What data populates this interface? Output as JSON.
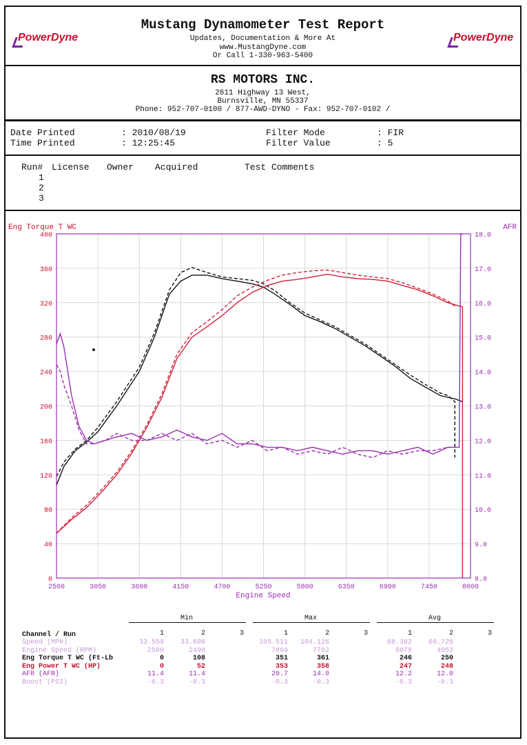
{
  "header": {
    "title": "Mustang Dynamometer Test Report",
    "line1": "Updates, Documentation & More At",
    "line2": "www.MustangDyne.com",
    "line3": "Or Call 1-330-963-5400",
    "logo_left": "PowerDyne",
    "logo_right": "PowerDyne"
  },
  "company": {
    "name": "RS MOTORS INC.",
    "address1": "2611 Highway 13 West,",
    "address2": "Burnsville, MN  55337",
    "phone": "Phone: 952-707-0100 / 877-AWD-DYNO - Fax: 952-707-0102 /"
  },
  "info": {
    "date_label": "Date Printed",
    "date_value": ": 2010/08/19",
    "time_label": "Time Printed",
    "time_value": ": 12:25:45",
    "filter_mode_label": "Filter Mode",
    "filter_mode_value": ":  FIR",
    "filter_value_label": "Filter Value",
    "filter_value_value": ":  5"
  },
  "runs": {
    "headers": [
      "Run#",
      "License",
      "Owner",
      "Acquired",
      "Test Comments"
    ],
    "numbers": [
      "1",
      "2",
      "3"
    ]
  },
  "chart_data": {
    "type": "line",
    "y_left_label": "Eng Torque T WC",
    "y_right_label": "AFR",
    "xlabel": "Engine Speed",
    "xlim": [
      2500,
      8000
    ],
    "ylim": [
      0,
      400
    ],
    "y2lim": [
      8.0,
      18.0
    ],
    "x_ticks": [
      2500,
      3050,
      3600,
      4150,
      4700,
      5250,
      5800,
      6350,
      6900,
      7450,
      8000
    ],
    "y_ticks": [
      0,
      40,
      80,
      120,
      160,
      200,
      240,
      280,
      320,
      360,
      400
    ],
    "y2_ticks": [
      "8.0",
      "9.0",
      "10.0",
      "11.0",
      "12.0",
      "13.0",
      "14.0",
      "15.0",
      "16.0",
      "17.0",
      "18.0"
    ],
    "grid": true,
    "series": [
      {
        "color": "#111111",
        "style": "solid",
        "x": [
          2500,
          2600,
          2750,
          2900,
          3050,
          3300,
          3600,
          3800,
          4000,
          4150,
          4300,
          4500,
          4700,
          4900,
          5100,
          5250,
          5400,
          5600,
          5800,
          6000,
          6200,
          6400,
          6600,
          6800,
          7000,
          7200,
          7400,
          7600,
          7800,
          7894
        ],
        "y": [
          108,
          130,
          148,
          158,
          170,
          200,
          240,
          280,
          330,
          345,
          352,
          352,
          348,
          345,
          342,
          338,
          330,
          318,
          305,
          298,
          290,
          280,
          270,
          258,
          246,
          232,
          222,
          212,
          208,
          205
        ]
      },
      {
        "color": "#111111",
        "style": "dashed",
        "x": [
          2500,
          2600,
          2750,
          2900,
          3050,
          3300,
          3600,
          3800,
          4000,
          4150,
          4300,
          4500,
          4700,
          4900,
          5100,
          5250,
          5400,
          5600,
          5800,
          6000,
          6200,
          6400,
          6600,
          6800,
          7000,
          7200,
          7400,
          7600,
          7700,
          7792,
          7792
        ],
        "y": [
          118,
          135,
          150,
          160,
          175,
          205,
          245,
          285,
          335,
          355,
          361,
          355,
          350,
          348,
          346,
          342,
          334,
          320,
          308,
          300,
          292,
          282,
          272,
          260,
          248,
          236,
          225,
          215,
          212,
          205,
          140
        ]
      },
      {
        "color": "#d0203a",
        "style": "solid",
        "x": [
          2500,
          2700,
          2900,
          3100,
          3300,
          3500,
          3700,
          3900,
          4100,
          4300,
          4500,
          4700,
          4900,
          5100,
          5300,
          5500,
          5700,
          5900,
          6100,
          6300,
          6500,
          6700,
          6900,
          7100,
          7300,
          7500,
          7700,
          7894,
          7894
        ],
        "y": [
          52,
          68,
          82,
          100,
          120,
          145,
          175,
          210,
          255,
          280,
          292,
          305,
          320,
          332,
          340,
          345,
          347,
          350,
          353,
          350,
          348,
          347,
          345,
          340,
          335,
          328,
          320,
          315,
          0
        ]
      },
      {
        "color": "#d0203a",
        "style": "dashed",
        "x": [
          2498,
          2700,
          2900,
          3100,
          3300,
          3500,
          3700,
          3900,
          4100,
          4300,
          4500,
          4700,
          4900,
          5100,
          5300,
          5500,
          5700,
          5900,
          6100,
          6300,
          6500,
          6700,
          6900,
          7100,
          7300,
          7500,
          7700,
          7792
        ],
        "y": [
          52,
          70,
          85,
          103,
          123,
          148,
          178,
          214,
          260,
          285,
          298,
          312,
          328,
          338,
          346,
          352,
          355,
          357,
          358,
          355,
          352,
          350,
          348,
          343,
          337,
          330,
          322,
          316
        ]
      },
      {
        "color": "#9a2fb0",
        "style": "solid",
        "afr": true,
        "x": [
          2500,
          2550,
          2600,
          2650,
          2700,
          2800,
          2900,
          3000,
          3150,
          3300,
          3500,
          3700,
          3900,
          4100,
          4300,
          4500,
          4700,
          4900,
          5100,
          5300,
          5500,
          5700,
          5900,
          6100,
          6300,
          6500,
          6700,
          6900,
          7100,
          7300,
          7500,
          7700,
          7850,
          7870,
          7894
        ],
        "y": [
          14.8,
          15.1,
          14.7,
          14.0,
          13.3,
          12.4,
          12.0,
          11.9,
          12.0,
          12.1,
          12.2,
          12.0,
          12.1,
          12.3,
          12.1,
          12.0,
          12.2,
          11.9,
          11.9,
          11.8,
          11.8,
          11.7,
          11.8,
          11.7,
          11.6,
          11.7,
          11.7,
          11.6,
          11.7,
          11.8,
          11.6,
          11.8,
          11.8,
          18.0,
          18.0
        ]
      },
      {
        "color": "#9a2fb0",
        "style": "dashed",
        "afr": true,
        "x": [
          2500,
          2550,
          2600,
          2700,
          2800,
          2900,
          3000,
          3150,
          3300,
          3500,
          3700,
          3900,
          4100,
          4300,
          4500,
          4700,
          4900,
          5100,
          5300,
          5500,
          5700,
          5900,
          6100,
          6300,
          6500,
          6700,
          6900,
          7100,
          7300,
          7500,
          7700,
          7792
        ],
        "y": [
          14.2,
          14.0,
          13.6,
          13.0,
          12.3,
          11.9,
          11.9,
          12.0,
          12.2,
          12.0,
          12.0,
          12.2,
          12.0,
          12.2,
          11.9,
          12.0,
          11.8,
          12.0,
          11.7,
          11.8,
          11.6,
          11.7,
          11.6,
          11.8,
          11.6,
          11.5,
          11.7,
          11.6,
          11.7,
          11.7,
          11.8,
          11.8
        ]
      }
    ]
  },
  "stats": {
    "group_min": "Min",
    "group_max": "Max",
    "group_avg": "Avg",
    "channel_header": "Channel / Run",
    "run_cols": [
      "1",
      "2",
      "3"
    ],
    "rows": [
      {
        "label": "Speed (MPH)",
        "color": "#c79ad6",
        "min": [
          "33.558",
          "33.600",
          ""
        ],
        "max": [
          "105.511",
          "104.126",
          ""
        ],
        "avg": [
          "68.382",
          "66.726",
          ""
        ]
      },
      {
        "label": "Engine Speed (RPM)",
        "color": "#c79ad6",
        "min": [
          "2500",
          "2498",
          ""
        ],
        "max": [
          "7894",
          "7792",
          ""
        ],
        "avg": [
          "5078",
          "4952",
          ""
        ]
      },
      {
        "label": "Eng Torque T WC (Ft-Lb",
        "color": "#111111",
        "min": [
          "0",
          "108",
          ""
        ],
        "max": [
          "351",
          "361",
          ""
        ],
        "avg": [
          "246",
          "250",
          ""
        ]
      },
      {
        "label": "Eng Power T WC (HP)",
        "color": "#c8102e",
        "min": [
          "0",
          "52",
          ""
        ],
        "max": [
          "353",
          "358",
          ""
        ],
        "avg": [
          "247",
          "248",
          ""
        ]
      },
      {
        "label": "AFR (AFR)",
        "color": "#9a2fb0",
        "min": [
          "11.4",
          "11.4",
          ""
        ],
        "max": [
          "20.7",
          "14.0",
          ""
        ],
        "avg": [
          "12.2",
          "12.0",
          ""
        ]
      },
      {
        "label": "Boost (PSI)",
        "color": "#c79ad6",
        "min": [
          "-0.3",
          "-0.3",
          ""
        ],
        "max": [
          "-0.3",
          "-0.3",
          ""
        ],
        "avg": [
          "-0.3",
          "-0.3",
          ""
        ]
      }
    ]
  }
}
